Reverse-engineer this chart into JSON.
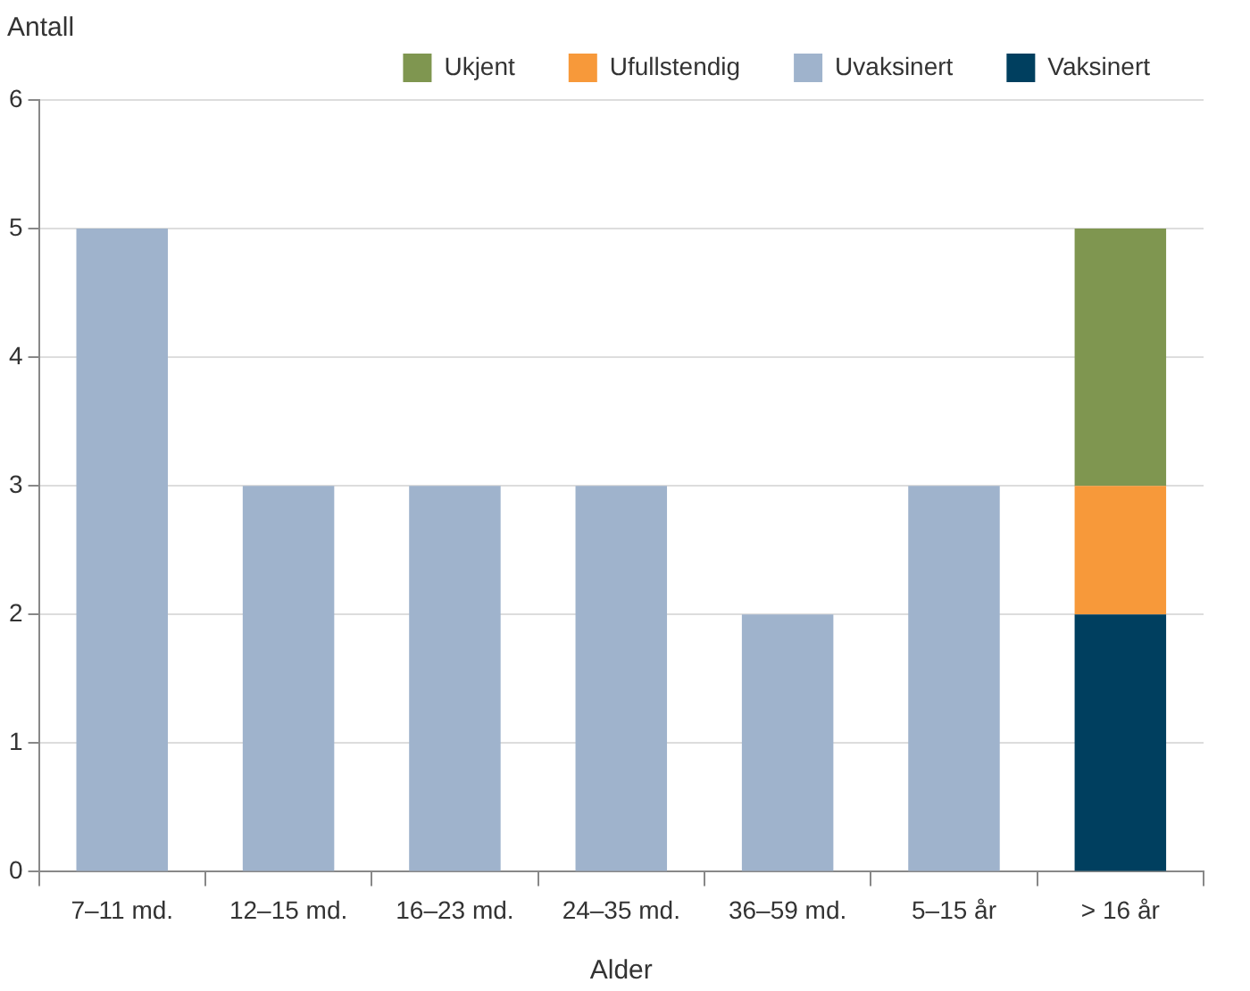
{
  "chart_data": {
    "type": "bar",
    "stacked": true,
    "xlabel": "Alder",
    "ylabel": "Antall",
    "categories": [
      "7–11 md.",
      "12–15 md.",
      "16–23 md.",
      "24–35 md.",
      "36–59 md.",
      "5–15 år",
      "> 16 år"
    ],
    "series": [
      {
        "name": "Vaksinert",
        "color": "#003f5f",
        "values": [
          null,
          null,
          null,
          null,
          null,
          null,
          2
        ]
      },
      {
        "name": "Uvaksinert",
        "color": "#9fb3cc",
        "values": [
          5,
          3,
          3,
          3,
          2,
          3,
          null
        ]
      },
      {
        "name": "Ufullstendig",
        "color": "#f7993a",
        "values": [
          null,
          null,
          null,
          null,
          null,
          null,
          1
        ]
      },
      {
        "name": "Ukjent",
        "color": "#7f9650",
        "values": [
          null,
          null,
          null,
          null,
          null,
          null,
          2
        ]
      }
    ],
    "ylim": [
      0,
      6
    ],
    "yticks": [
      0,
      1,
      2,
      3,
      4,
      5,
      6
    ],
    "grid": "y",
    "legend": "top"
  }
}
